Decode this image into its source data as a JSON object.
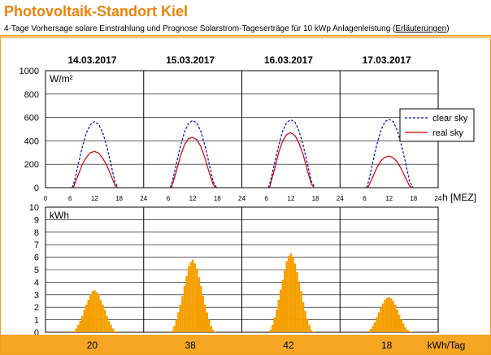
{
  "header": {
    "title": "Photovoltaik-Standort Kiel",
    "subtitle": "4-Tage Vorhersage solare Einstrahlung und Prognose Solarstrom-Tageserträge für 10 kWp Anlagenleistung",
    "link_label": "Erläuterungen",
    "link_open": "(",
    "link_close": ")"
  },
  "colors": {
    "accent": "#e8830c",
    "orange_band": "#f5a623",
    "bar": "#f5a000",
    "clear_sky": "#0000cc",
    "real_sky": "#cc0000"
  },
  "chart_data": [
    {
      "type": "line",
      "dates": [
        "14.03.2017",
        "15.03.2017",
        "16.03.2017",
        "17.03.2017"
      ],
      "ylabel": "W/m²",
      "xlabel": "h [MEZ]",
      "ylim": [
        0,
        1000
      ],
      "yticks": [
        0,
        200,
        400,
        600,
        800,
        1000
      ],
      "xticks": [
        "0",
        "6",
        "12",
        "18",
        "24",
        "6",
        "12",
        "18",
        "24",
        "6",
        "12",
        "18",
        "24",
        "6",
        "12",
        "18",
        "24"
      ],
      "grid": true,
      "legend_position": "top-right",
      "series": [
        {
          "name": "clear sky",
          "days": [
            {
              "x": [
                6.5,
                7,
                8,
                9,
                10,
                11,
                12,
                13,
                14,
                15,
                16,
                17,
                17.8
              ],
              "y": [
                0,
                45,
                200,
                350,
                470,
                540,
                565,
                540,
                470,
                350,
                200,
                45,
                0
              ]
            },
            {
              "x": [
                6.5,
                7,
                8,
                9,
                10,
                11,
                12,
                13,
                14,
                15,
                16,
                17,
                17.8
              ],
              "y": [
                0,
                50,
                205,
                355,
                480,
                550,
                575,
                550,
                480,
                355,
                205,
                50,
                0
              ]
            },
            {
              "x": [
                6.5,
                7,
                8,
                9,
                10,
                11,
                12,
                13,
                14,
                15,
                16,
                17,
                17.9
              ],
              "y": [
                0,
                55,
                210,
                360,
                485,
                560,
                580,
                560,
                485,
                360,
                210,
                55,
                0
              ]
            },
            {
              "x": [
                6.5,
                7,
                8,
                9,
                10,
                11,
                12,
                13,
                14,
                15,
                16,
                17,
                17.9
              ],
              "y": [
                0,
                55,
                215,
                365,
                490,
                565,
                585,
                565,
                490,
                365,
                215,
                55,
                0
              ]
            }
          ]
        },
        {
          "name": "real sky",
          "days": [
            {
              "x": [
                6.8,
                7,
                8,
                9,
                10,
                11,
                12,
                13,
                14,
                15,
                16,
                17,
                17.6
              ],
              "y": [
                0,
                20,
                110,
                200,
                260,
                300,
                310,
                295,
                250,
                190,
                105,
                20,
                0
              ]
            },
            {
              "x": [
                6.8,
                7,
                8,
                9,
                10,
                11,
                12,
                13,
                14,
                15,
                16,
                17,
                17.6
              ],
              "y": [
                0,
                25,
                140,
                270,
                370,
                420,
                430,
                410,
                350,
                250,
                130,
                25,
                0
              ]
            },
            {
              "x": [
                6.8,
                7,
                8,
                9,
                10,
                11,
                12,
                13,
                14,
                15,
                16,
                17,
                17.7
              ],
              "y": [
                0,
                30,
                160,
                300,
                400,
                455,
                470,
                445,
                380,
                280,
                150,
                30,
                0
              ]
            },
            {
              "x": [
                6.8,
                7,
                8,
                9,
                10,
                11,
                12,
                13,
                14,
                15,
                16,
                17,
                17.7
              ],
              "y": [
                0,
                15,
                90,
                170,
                230,
                260,
                270,
                255,
                220,
                160,
                85,
                15,
                0
              ]
            }
          ]
        }
      ]
    },
    {
      "type": "bar",
      "ylabel": "kWh",
      "ylim": [
        0,
        10
      ],
      "yticks": [
        0,
        1,
        2,
        3,
        4,
        5,
        6,
        7,
        8,
        9,
        10
      ],
      "grid": true,
      "daily_totals": [
        "20",
        "38",
        "42",
        "18"
      ],
      "totals_unit": "kWh/Tag",
      "series": [
        {
          "name": "",
          "day": 1,
          "x": [
            7.0,
            7.5,
            8.0,
            8.5,
            9.0,
            9.5,
            10.0,
            10.5,
            11.0,
            11.5,
            12.0,
            12.5,
            13.0,
            13.5,
            14.0,
            14.5,
            15.0,
            15.5,
            16.0,
            16.5,
            17.0,
            17.5
          ],
          "values": [
            0.1,
            0.3,
            0.6,
            0.9,
            1.3,
            1.8,
            2.2,
            2.6,
            3.0,
            3.3,
            3.35,
            3.2,
            3.0,
            2.6,
            2.2,
            1.8,
            1.3,
            0.9,
            0.6,
            0.3,
            0.1,
            0.05
          ]
        },
        {
          "name": "",
          "day": 2,
          "x": [
            7.0,
            7.5,
            8.0,
            8.5,
            9.0,
            9.5,
            10.0,
            10.5,
            11.0,
            11.5,
            12.0,
            12.5,
            13.0,
            13.5,
            14.0,
            14.5,
            15.0,
            15.5,
            16.0,
            16.5,
            17.0,
            17.5
          ],
          "values": [
            0.15,
            0.5,
            1.0,
            1.6,
            2.2,
            2.9,
            3.7,
            4.5,
            5.3,
            5.6,
            5.8,
            5.5,
            5.1,
            4.4,
            3.7,
            2.9,
            2.2,
            1.6,
            1.0,
            0.5,
            0.2,
            0.05
          ]
        },
        {
          "name": "",
          "day": 3,
          "x": [
            7.0,
            7.5,
            8.0,
            8.5,
            9.0,
            9.5,
            10.0,
            10.5,
            11.0,
            11.5,
            12.0,
            12.5,
            13.0,
            13.5,
            14.0,
            14.5,
            15.0,
            15.5,
            16.0,
            16.5,
            17.0,
            17.5
          ],
          "values": [
            0.2,
            0.6,
            1.2,
            1.8,
            2.6,
            3.4,
            4.2,
            5.0,
            5.7,
            6.1,
            6.3,
            6.0,
            5.5,
            4.8,
            4.0,
            3.3,
            2.4,
            1.7,
            1.1,
            0.6,
            0.2,
            0.05
          ]
        },
        {
          "name": "",
          "day": 4,
          "x": [
            7.0,
            7.5,
            8.0,
            8.5,
            9.0,
            9.5,
            10.0,
            10.5,
            11.0,
            11.5,
            12.0,
            12.5,
            13.0,
            13.5,
            14.0,
            14.5,
            15.0,
            15.5,
            16.0,
            16.5,
            17.0,
            17.5
          ],
          "values": [
            0.1,
            0.25,
            0.5,
            0.8,
            1.2,
            1.6,
            2.0,
            2.3,
            2.6,
            2.75,
            2.8,
            2.7,
            2.5,
            2.2,
            1.8,
            1.4,
            1.0,
            0.7,
            0.4,
            0.2,
            0.1,
            0.05
          ]
        }
      ]
    }
  ]
}
